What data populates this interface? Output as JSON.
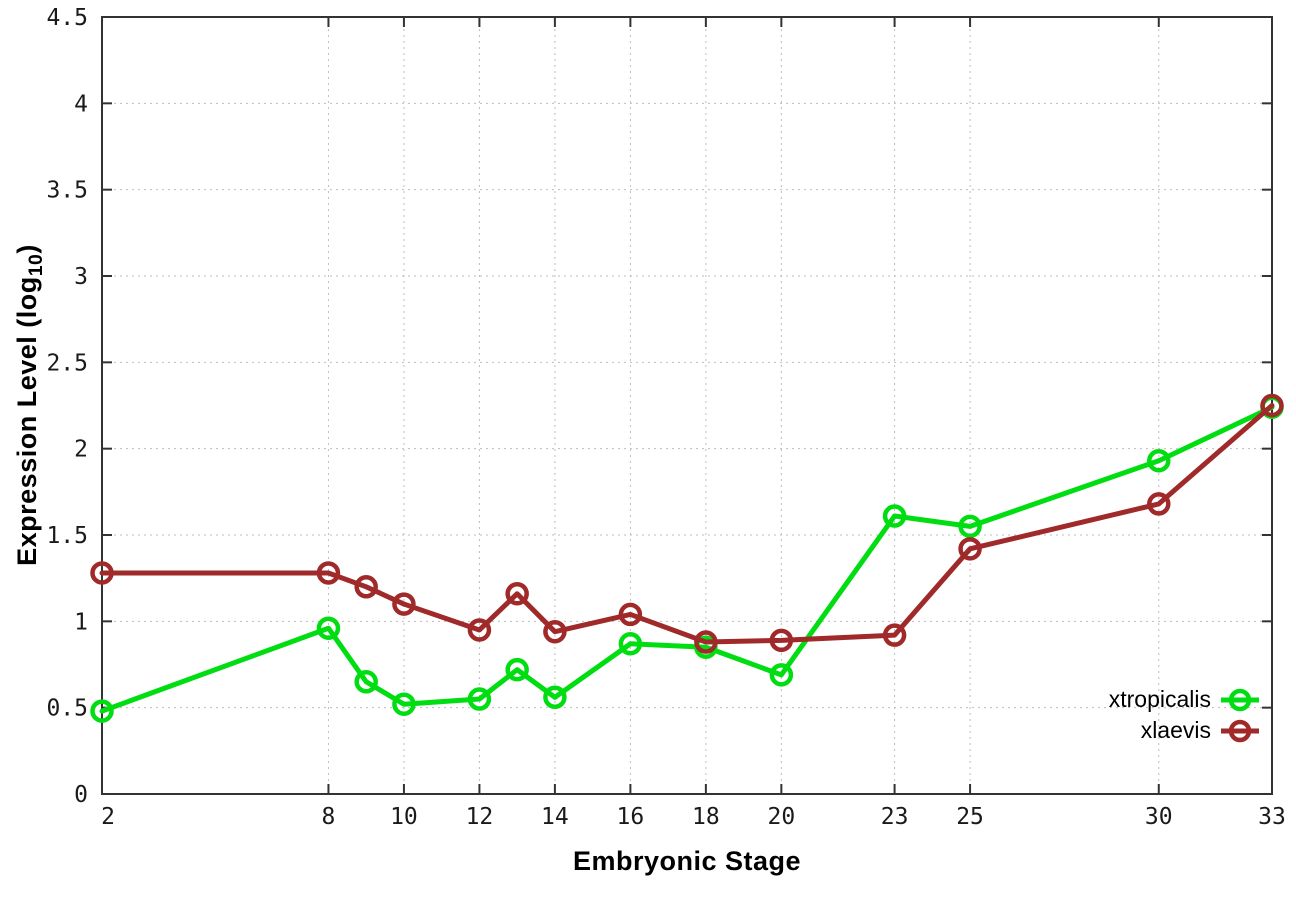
{
  "chart_data": {
    "type": "line",
    "title": "",
    "xlabel": "Embryonic Stage",
    "ylabel": "Expression Level (log10)",
    "ylabel_parts": {
      "prefix": "Expression Level (log",
      "sub": "10",
      "suffix": ")"
    },
    "x": [
      2,
      8,
      9,
      10,
      12,
      13,
      14,
      16,
      18,
      20,
      23,
      25,
      30,
      33
    ],
    "x_tick_values": [
      2,
      8,
      10,
      12,
      14,
      16,
      18,
      20,
      23,
      25,
      30,
      33
    ],
    "x_tick_labels": [
      "2",
      "8",
      "10",
      "12",
      "14",
      "16",
      "18",
      "20",
      "23",
      "25",
      "30",
      "33"
    ],
    "y_tick_values": [
      0,
      0.5,
      1,
      1.5,
      2,
      2.5,
      3,
      3.5,
      4,
      4.5
    ],
    "y_tick_labels": [
      "0",
      "0.5",
      "1",
      "1.5",
      "2",
      "2.5",
      "3",
      "3.5",
      "4",
      "4.5"
    ],
    "xlim": [
      2,
      33
    ],
    "ylim": [
      0,
      4.5
    ],
    "grid": true,
    "legend_position": "bottom-right",
    "series": [
      {
        "name": "xtropicalis",
        "color": "#00dd11",
        "values": [
          0.48,
          0.96,
          0.65,
          0.52,
          0.55,
          0.72,
          0.56,
          0.87,
          0.85,
          0.69,
          1.61,
          1.55,
          1.93,
          2.24
        ]
      },
      {
        "name": "xlaevis",
        "color": "#a02a2a",
        "values": [
          1.28,
          1.28,
          1.2,
          1.1,
          0.95,
          1.16,
          0.94,
          1.04,
          0.88,
          0.89,
          0.92,
          1.42,
          1.68,
          2.25
        ]
      }
    ],
    "colors": {
      "background": "#ffffff",
      "border": "#333333",
      "grid": "#bdbdbd",
      "tick_text": "#1a1a1a"
    }
  }
}
